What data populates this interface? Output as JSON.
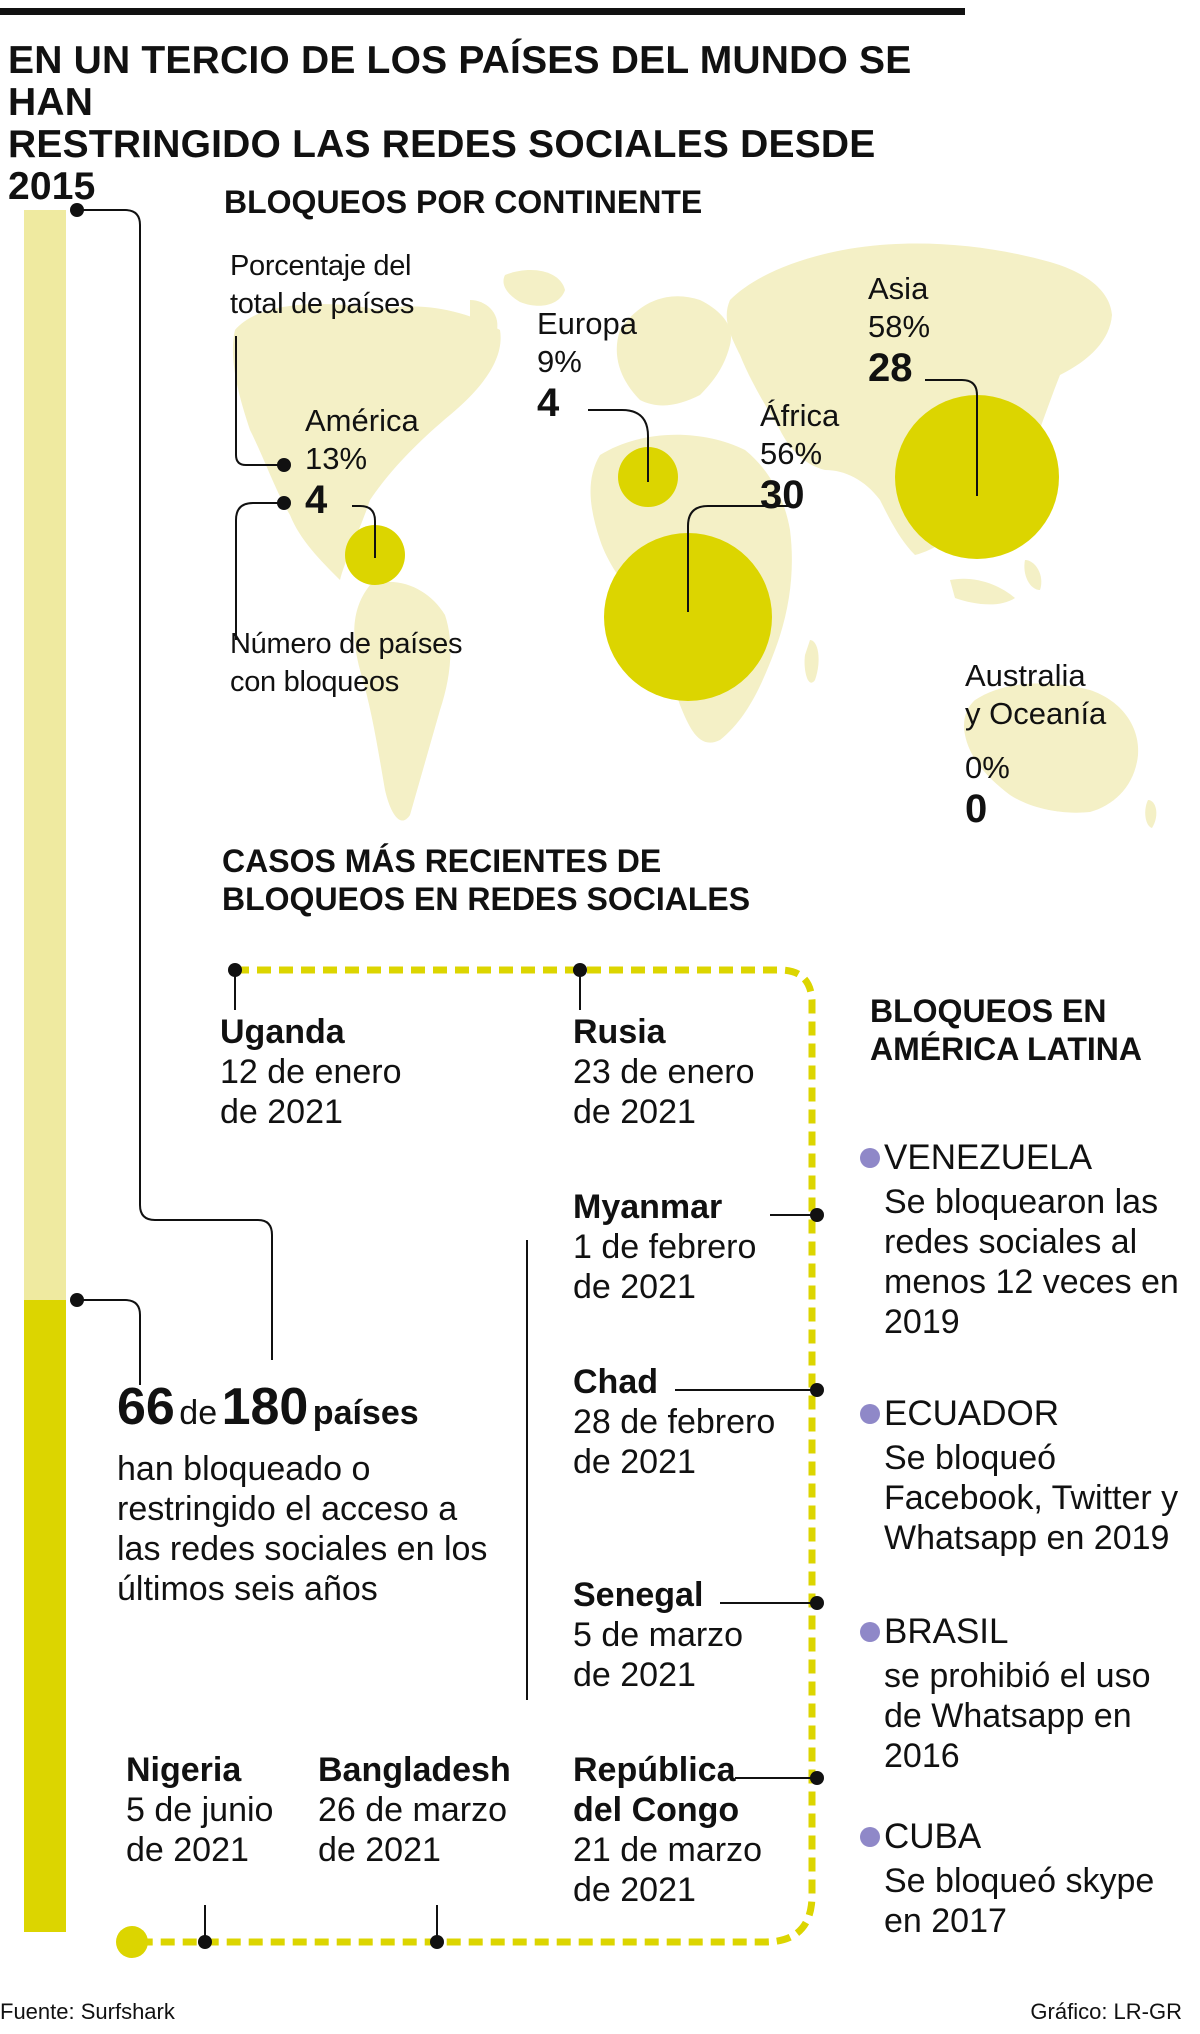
{
  "title": {
    "line1": "EN UN TERCIO DE LOS PAÍSES DEL MUNDO SE HAN",
    "line2": "RESTRINGIDO LAS REDES SOCIALES DESDE 2015"
  },
  "colors": {
    "accent": "#dcd500",
    "accent_light": "#efeaa0",
    "map": "#f4f0c6",
    "bullet": "#8f88c8",
    "ink": "#111111"
  },
  "map_section": {
    "heading": "BLOQUEOS POR CONTINENTE",
    "legend_percent_1": "Porcentaje del",
    "legend_percent_2": "total de países",
    "legend_count_1": "Número de países",
    "legend_count_2": "con bloqueos",
    "continents": [
      {
        "name": "América",
        "percent": "13%",
        "count": "4"
      },
      {
        "name": "Europa",
        "percent": "9%",
        "count": "4"
      },
      {
        "name": "África",
        "percent": "56%",
        "count": "30"
      },
      {
        "name": "Asia",
        "percent": "58%",
        "count": "28"
      },
      {
        "name_1": "Australia",
        "name_2": "y Oceanía",
        "percent": "0%",
        "count": "0"
      }
    ]
  },
  "summary": {
    "count": "66",
    "of": "de",
    "total": "180",
    "unit": "países",
    "line1": "han bloqueado o",
    "line2": "restringido el acceso a",
    "line3": "las redes sociales en los",
    "line4": "últimos seis años"
  },
  "recent": {
    "heading_1": "CASOS MÁS RECIENTES DE",
    "heading_2": "BLOQUEOS EN REDES SOCIALES",
    "events": [
      {
        "country": "Uganda",
        "date_1": "12 de enero",
        "date_2": "de 2021"
      },
      {
        "country": "Rusia",
        "date_1": "23 de enero",
        "date_2": "de 2021"
      },
      {
        "country": "Myanmar",
        "date_1": "1 de febrero",
        "date_2": "de 2021"
      },
      {
        "country": "Chad",
        "date_1": "28 de febrero",
        "date_2": "de 2021"
      },
      {
        "country": "Senegal",
        "date_1": "5 de marzo",
        "date_2": "de 2021"
      },
      {
        "country_1": "República",
        "country_2": "del Congo",
        "date_1": "21 de marzo",
        "date_2": "de 2021"
      },
      {
        "country": "Bangladesh",
        "date_1": "26 de marzo",
        "date_2": "de 2021"
      },
      {
        "country": "Nigeria",
        "date_1": "5 de junio",
        "date_2": "de 2021"
      }
    ]
  },
  "latam": {
    "heading_1": "BLOQUEOS EN",
    "heading_2": "AMÉRICA LATINA",
    "items": [
      {
        "country": "VENEZUELA",
        "lines": [
          "Se bloquearon las",
          "redes sociales al",
          "menos 12 veces en",
          "2019"
        ]
      },
      {
        "country": "ECUADOR",
        "lines": [
          "Se bloqueó",
          "Facebook, Twitter y",
          "Whatsapp en 2019"
        ]
      },
      {
        "country": "BRASIL",
        "lines": [
          "se prohibió el uso",
          "de Whatsapp en",
          "2016"
        ]
      },
      {
        "country": "CUBA",
        "lines": [
          "Se bloqueó skype",
          "en 2017"
        ]
      }
    ]
  },
  "footer": {
    "source": "Fuente: Surfshark",
    "credit": "Gráfico: LR-GR"
  }
}
